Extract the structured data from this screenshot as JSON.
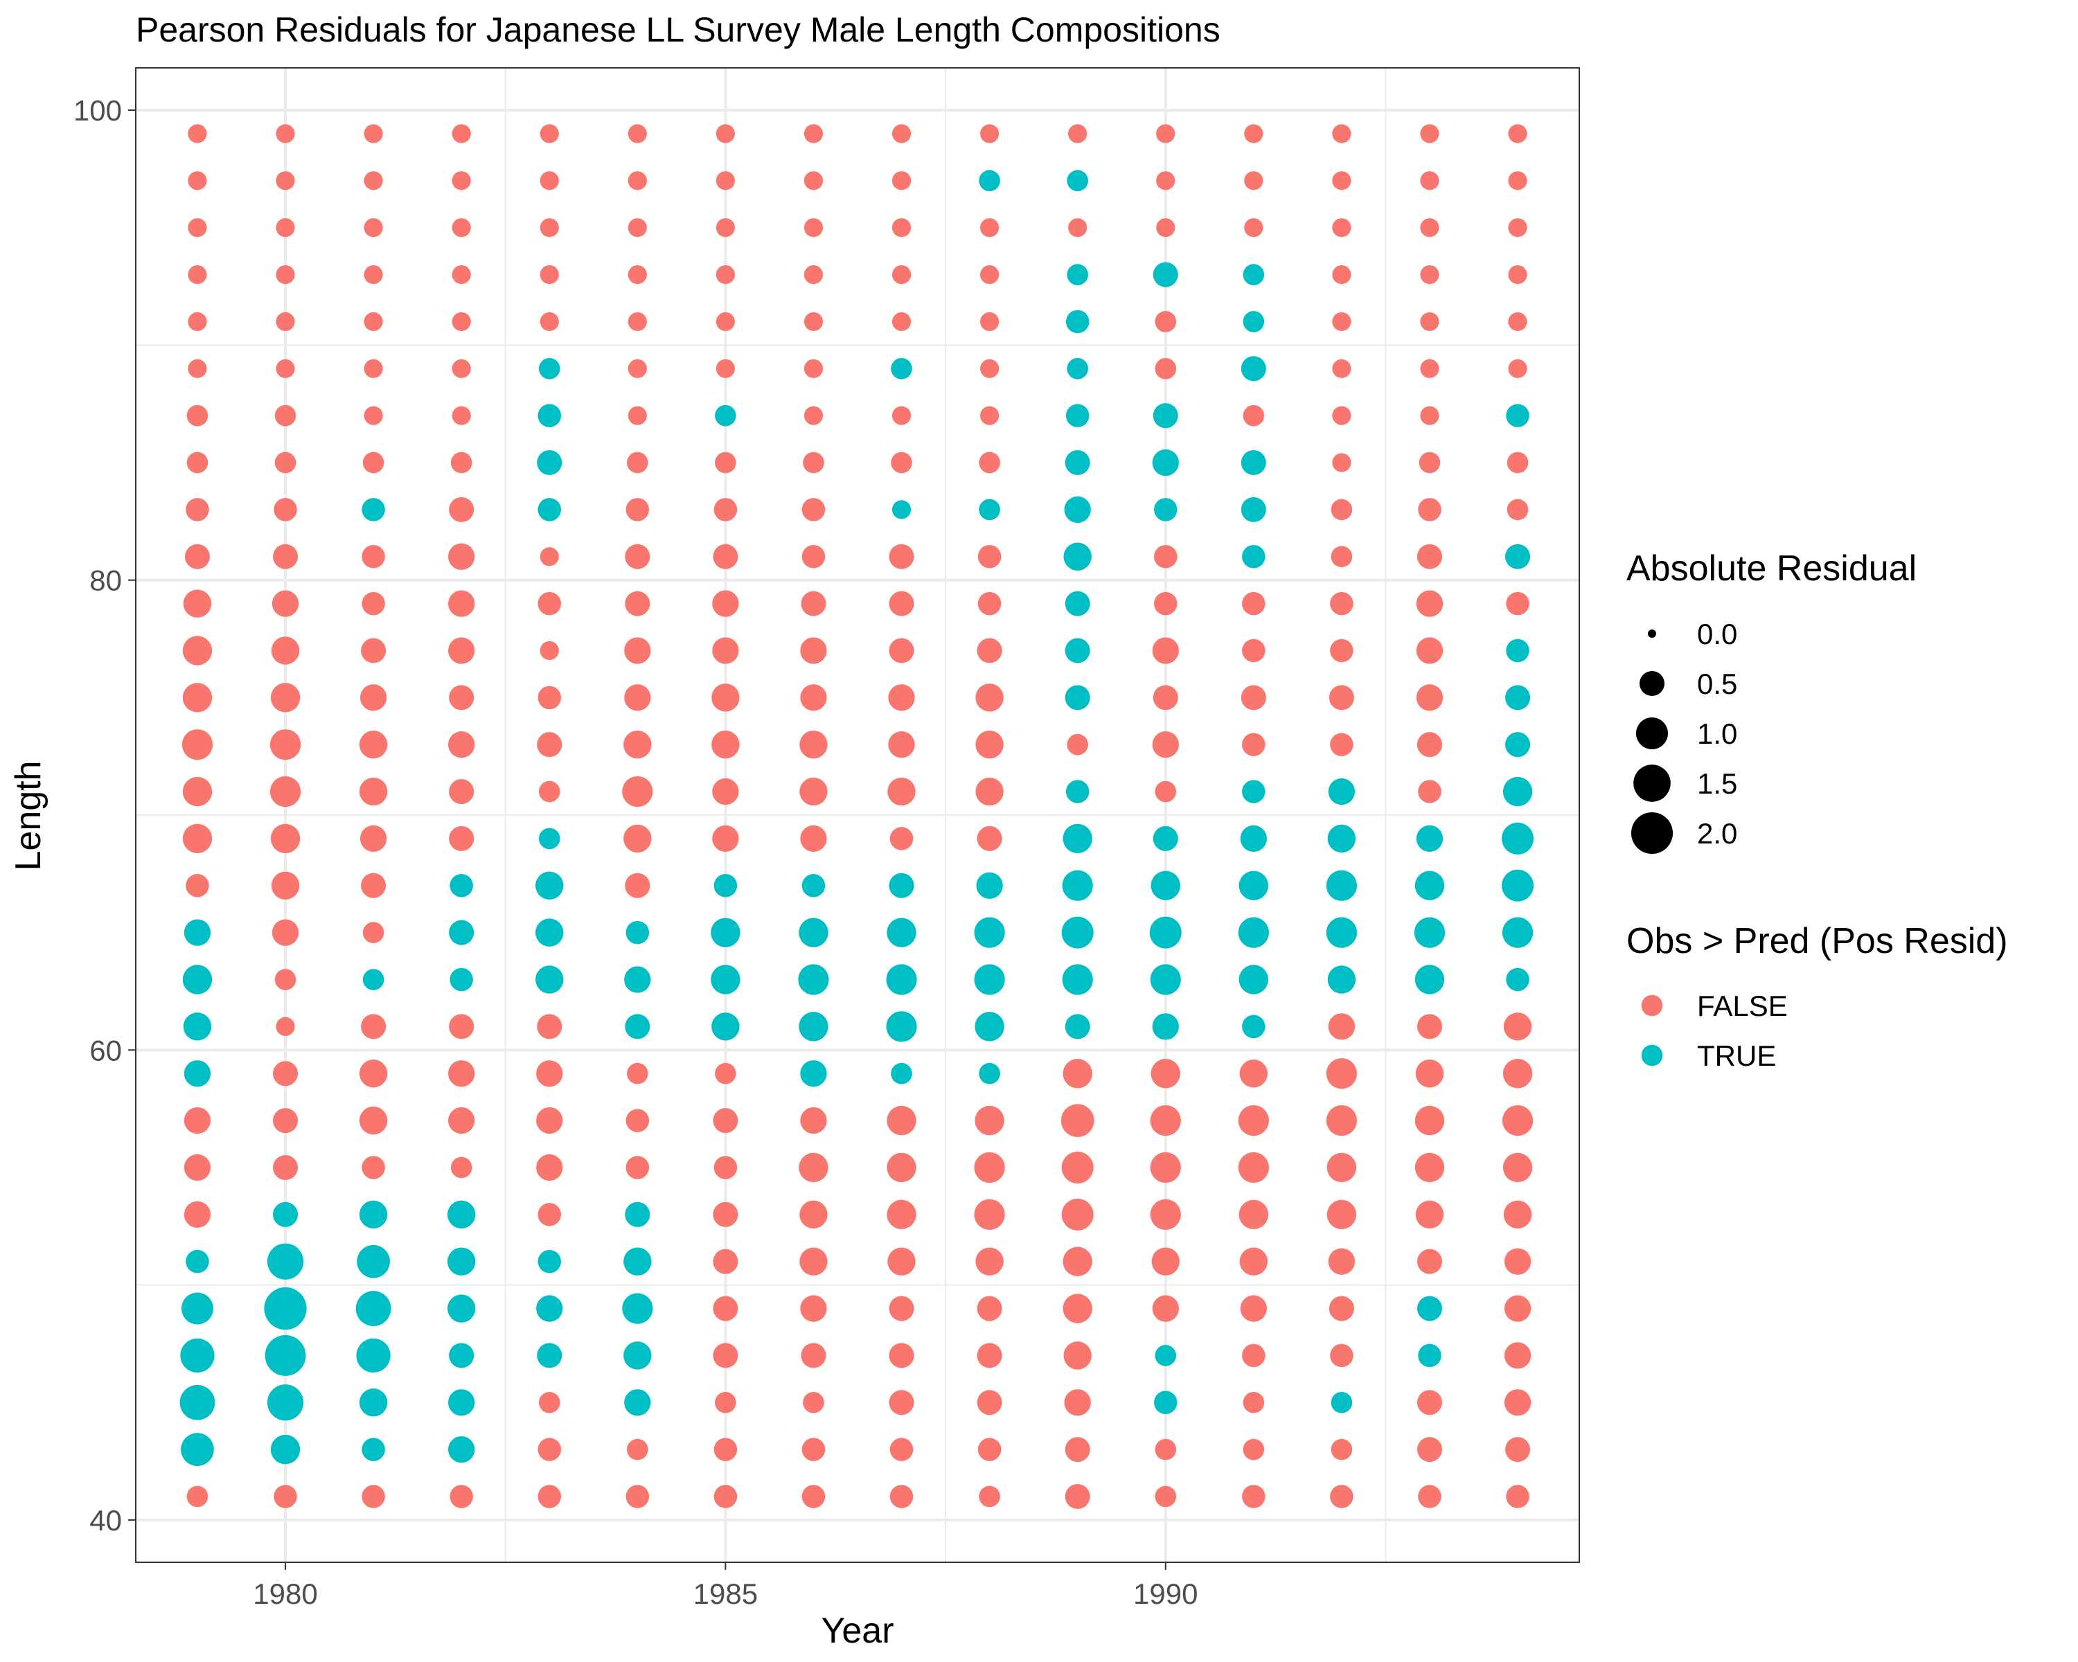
{
  "chart_data": {
    "type": "scatter",
    "title": "Pearson Residuals for Japanese LL Survey Male Length Compositions",
    "xlabel": "Year",
    "ylabel": "Length",
    "xlim": [
      1978.3,
      1994.7
    ],
    "ylim": [
      38.2,
      101.8
    ],
    "x_ticks": [
      1980,
      1985,
      1990
    ],
    "y_ticks": [
      40,
      60,
      80,
      100
    ],
    "grid": true,
    "years": [
      1979,
      1980,
      1981,
      1982,
      1983,
      1984,
      1985,
      1986,
      1987,
      1988,
      1989,
      1990,
      1991,
      1992,
      1993,
      1994
    ],
    "lengths": [
      41,
      43,
      45,
      47,
      49,
      51,
      53,
      55,
      57,
      59,
      61,
      63,
      65,
      67,
      69,
      71,
      73,
      75,
      77,
      79,
      81,
      83,
      85,
      87,
      89,
      91,
      93,
      95,
      97,
      99
    ],
    "residual_note": "rows indexed by year; values indexed by lengths (41..99); sign = Obs > Pred",
    "residuals": [
      [
        -0.3,
        1.1,
        1.3,
        1.2,
        1.0,
        0.4,
        -0.6,
        -0.6,
        -0.6,
        0.6,
        0.7,
        0.8,
        0.6,
        -0.4,
        -0.8,
        -0.8,
        -0.9,
        -0.8,
        -0.8,
        -0.7,
        -0.5,
        -0.4,
        -0.3,
        -0.3,
        -0.2,
        -0.2,
        -0.2,
        -0.2,
        -0.2,
        -0.2
      ],
      [
        -0.4,
        0.8,
        1.4,
        1.9,
        2.1,
        1.4,
        0.5,
        -0.5,
        -0.5,
        -0.5,
        -0.2,
        -0.3,
        -0.6,
        -0.7,
        -0.8,
        -0.9,
        -0.9,
        -0.8,
        -0.7,
        -0.6,
        -0.5,
        -0.4,
        -0.3,
        -0.3,
        -0.2,
        -0.2,
        -0.2,
        -0.2,
        -0.2,
        -0.2
      ],
      [
        -0.4,
        0.4,
        0.7,
        1.2,
        1.3,
        1.1,
        0.7,
        -0.4,
        -0.7,
        -0.7,
        -0.5,
        0.3,
        -0.3,
        -0.5,
        -0.6,
        -0.7,
        -0.7,
        -0.6,
        -0.5,
        -0.4,
        -0.4,
        0.4,
        -0.3,
        -0.2,
        -0.2,
        -0.2,
        -0.2,
        -0.2,
        -0.2,
        -0.2
      ],
      [
        -0.4,
        0.6,
        0.6,
        0.5,
        0.7,
        0.7,
        0.7,
        -0.3,
        -0.6,
        -0.6,
        -0.5,
        0.4,
        0.5,
        0.4,
        -0.5,
        -0.5,
        -0.6,
        -0.5,
        -0.6,
        -0.6,
        -0.6,
        -0.5,
        -0.3,
        -0.2,
        -0.2,
        -0.2,
        -0.2,
        -0.2,
        -0.2,
        -0.2
      ],
      [
        -0.4,
        -0.4,
        -0.3,
        0.5,
        0.6,
        0.4,
        -0.4,
        -0.6,
        -0.6,
        -0.6,
        -0.5,
        0.7,
        0.7,
        0.7,
        0.3,
        -0.3,
        -0.5,
        -0.4,
        -0.2,
        -0.4,
        -0.2,
        0.4,
        0.5,
        0.4,
        0.3,
        -0.2,
        -0.2,
        -0.2,
        -0.2,
        -0.2
      ],
      [
        -0.4,
        -0.3,
        0.6,
        0.7,
        0.9,
        0.7,
        0.5,
        -0.4,
        -0.4,
        -0.3,
        0.5,
        0.6,
        0.4,
        -0.5,
        -0.7,
        -0.9,
        -0.7,
        -0.6,
        -0.6,
        -0.5,
        -0.5,
        -0.4,
        -0.3,
        -0.2,
        -0.2,
        -0.2,
        -0.2,
        -0.2,
        -0.2,
        -0.2
      ],
      [
        -0.4,
        -0.4,
        -0.3,
        -0.5,
        -0.5,
        -0.5,
        -0.5,
        -0.4,
        -0.5,
        -0.3,
        0.7,
        0.8,
        0.8,
        0.4,
        -0.6,
        -0.6,
        -0.7,
        -0.7,
        -0.6,
        -0.6,
        -0.5,
        -0.4,
        -0.3,
        0.3,
        -0.2,
        -0.2,
        -0.2,
        -0.2,
        -0.2,
        -0.2
      ],
      [
        -0.4,
        -0.4,
        -0.3,
        -0.5,
        -0.6,
        -0.7,
        -0.7,
        -0.8,
        -0.6,
        0.6,
        0.8,
        0.9,
        0.8,
        0.4,
        -0.6,
        -0.7,
        -0.7,
        -0.6,
        -0.6,
        -0.5,
        -0.4,
        -0.4,
        -0.3,
        -0.2,
        -0.2,
        -0.2,
        -0.2,
        -0.2,
        -0.2,
        -0.2
      ],
      [
        -0.4,
        -0.4,
        -0.5,
        -0.5,
        -0.5,
        -0.7,
        -0.8,
        -0.8,
        -0.8,
        0.3,
        0.9,
        0.9,
        0.8,
        0.5,
        -0.4,
        -0.7,
        -0.6,
        -0.6,
        -0.5,
        -0.5,
        -0.5,
        0.2,
        -0.3,
        -0.2,
        0.3,
        -0.2,
        -0.2,
        -0.2,
        -0.2,
        -0.2
      ],
      [
        -0.3,
        -0.4,
        -0.5,
        -0.5,
        -0.5,
        -0.7,
        -0.9,
        -0.9,
        -0.8,
        0.3,
        0.8,
        0.9,
        0.9,
        0.6,
        -0.5,
        -0.7,
        -0.7,
        -0.7,
        -0.5,
        -0.4,
        -0.4,
        0.3,
        -0.3,
        -0.2,
        -0.2,
        -0.2,
        -0.2,
        -0.2,
        0.3,
        -0.2
      ],
      [
        -0.5,
        -0.5,
        -0.6,
        -0.7,
        -0.8,
        -0.8,
        -1.0,
        -1.0,
        -1.1,
        -0.8,
        0.5,
        0.9,
        1.0,
        0.9,
        0.8,
        0.4,
        -0.3,
        0.5,
        0.5,
        0.5,
        0.7,
        0.6,
        0.5,
        0.4,
        0.3,
        0.4,
        0.3,
        -0.2,
        0.3,
        -0.2
      ],
      [
        -0.3,
        -0.3,
        0.4,
        0.3,
        -0.6,
        -0.7,
        -0.9,
        -0.9,
        -0.9,
        -0.8,
        0.6,
        0.9,
        1.0,
        0.8,
        0.5,
        -0.3,
        -0.6,
        -0.5,
        -0.6,
        -0.4,
        -0.4,
        0.4,
        0.6,
        0.5,
        -0.3,
        -0.3,
        0.5,
        -0.2,
        -0.2,
        -0.2
      ],
      [
        -0.4,
        -0.3,
        -0.3,
        -0.4,
        -0.6,
        -0.7,
        -0.8,
        -0.9,
        -0.9,
        -0.7,
        0.4,
        0.8,
        0.9,
        0.8,
        0.6,
        0.4,
        -0.4,
        -0.5,
        -0.4,
        -0.4,
        0.4,
        0.5,
        0.5,
        -0.3,
        0.5,
        0.3,
        0.3,
        -0.2,
        -0.2,
        -0.2
      ],
      [
        -0.4,
        -0.3,
        0.3,
        -0.4,
        -0.5,
        -0.6,
        -0.8,
        -0.8,
        -0.9,
        -0.9,
        -0.6,
        0.7,
        0.9,
        0.9,
        0.7,
        0.6,
        -0.4,
        -0.5,
        -0.4,
        -0.4,
        -0.3,
        -0.3,
        -0.2,
        -0.2,
        -0.2,
        -0.2,
        -0.2,
        -0.2,
        -0.2,
        -0.2
      ],
      [
        -0.4,
        -0.5,
        -0.5,
        0.4,
        0.5,
        -0.5,
        -0.7,
        -0.8,
        -0.8,
        -0.7,
        -0.5,
        0.8,
        0.9,
        0.8,
        0.6,
        -0.4,
        -0.5,
        -0.6,
        -0.6,
        -0.6,
        -0.5,
        -0.4,
        -0.3,
        -0.2,
        -0.2,
        -0.2,
        -0.2,
        -0.2,
        -0.2,
        -0.2
      ],
      [
        -0.4,
        -0.5,
        -0.6,
        -0.6,
        -0.6,
        -0.6,
        -0.7,
        -0.8,
        -0.9,
        -0.8,
        -0.7,
        0.4,
        0.9,
        1.0,
        1.0,
        0.8,
        0.5,
        0.5,
        0.4,
        -0.4,
        0.5,
        -0.3,
        -0.3,
        0.4,
        -0.2,
        -0.2,
        -0.2,
        -0.2,
        -0.2,
        -0.2
      ]
    ],
    "legend": [
      {
        "title": "Absolute Residual",
        "entries": [
          "0.0",
          "0.5",
          "1.0",
          "1.5",
          "2.0"
        ]
      },
      {
        "title": "Obs > Pred (Pos Resid)",
        "entries": [
          "FALSE",
          "TRUE"
        ]
      }
    ],
    "legend_placement": "right",
    "size_breaks": [
      0.0,
      0.5,
      1.0,
      1.5,
      2.0
    ],
    "colors": {
      "FALSE": "#F8766D",
      "TRUE": "#00BFC4",
      "grid": "#EBEBEB",
      "border": "#333333"
    }
  }
}
